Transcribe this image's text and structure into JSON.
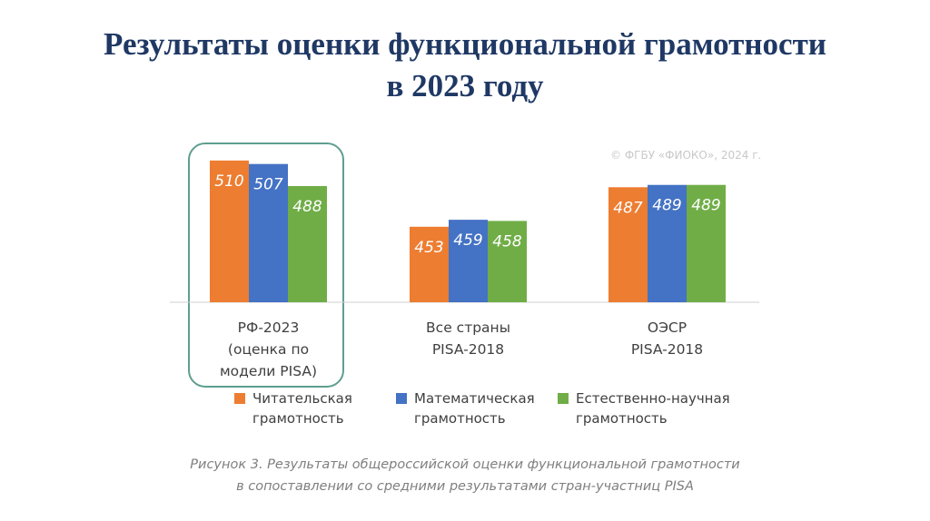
{
  "title": {
    "line1": "Результаты оценки функциональной грамотности",
    "line2": "в 2023 году"
  },
  "copyright": "© ФГБУ «ФИОКО», 2024 г.",
  "colors": {
    "reading": "#ed7d31",
    "math": "#4472c4",
    "science": "#70ad47",
    "highlight_frame": "#5f9e8f",
    "axis": "#d0d0d0"
  },
  "chart_data": {
    "type": "bar",
    "categories": [
      [
        "РФ-2023",
        "(оценка по",
        "модели PISA)"
      ],
      [
        "Все страны",
        "PISA-2018"
      ],
      [
        "ОЭСР",
        "PISA-2018"
      ]
    ],
    "series": [
      {
        "name": "Читательская грамотность",
        "name_lines": [
          "Читательская",
          "грамотность"
        ],
        "values": [
          510,
          453,
          487
        ],
        "labels": [
          "510",
          "453",
          "487"
        ]
      },
      {
        "name": "Математическая грамотность",
        "name_lines": [
          "Математическая",
          "грамотность"
        ],
        "values": [
          507,
          459,
          489
        ],
        "labels": [
          "507",
          "459",
          "489"
        ]
      },
      {
        "name": "Естественно-научная грамотность",
        "name_lines": [
          "Естественно-научная",
          "грамотность"
        ],
        "values": [
          488,
          458,
          489
        ],
        "labels": [
          "488",
          "458",
          "489"
        ]
      }
    ],
    "legend": "bottom",
    "grid": false,
    "highlighted_category": 0
  },
  "caption": {
    "line1": "Рисунок 3. Результаты общероссийской оценки функциональной грамотности",
    "line2": "в сопоставлении со средними результатами стран-участниц PISA"
  }
}
